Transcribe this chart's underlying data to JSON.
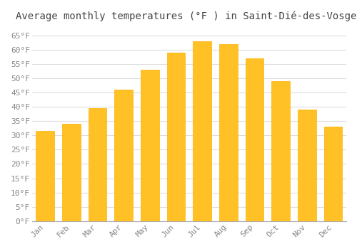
{
  "months": [
    "Jan",
    "Feb",
    "Mar",
    "Apr",
    "May",
    "Jun",
    "Jul",
    "Aug",
    "Sep",
    "Oct",
    "Nov",
    "Dec"
  ],
  "values": [
    31.5,
    34.0,
    39.5,
    46.0,
    53.0,
    59.0,
    63.0,
    62.0,
    57.0,
    49.0,
    39.0,
    33.0
  ],
  "bar_color": "#FFC125",
  "bar_edge_color": "#FFB000",
  "title": "Average monthly temperatures (°F ) in Saint-Dié-des-Vosges",
  "ylim": [
    0,
    68
  ],
  "yticks": [
    0,
    5,
    10,
    15,
    20,
    25,
    30,
    35,
    40,
    45,
    50,
    55,
    60,
    65
  ],
  "ytick_labels": [
    "0°F",
    "5°F",
    "10°F",
    "15°F",
    "20°F",
    "25°F",
    "30°F",
    "35°F",
    "40°F",
    "45°F",
    "50°F",
    "55°F",
    "60°F",
    "65°F"
  ],
  "bg_color": "#FFFFFF",
  "grid_color": "#DDDDDD",
  "title_fontsize": 10,
  "tick_fontsize": 8,
  "font_family": "monospace"
}
